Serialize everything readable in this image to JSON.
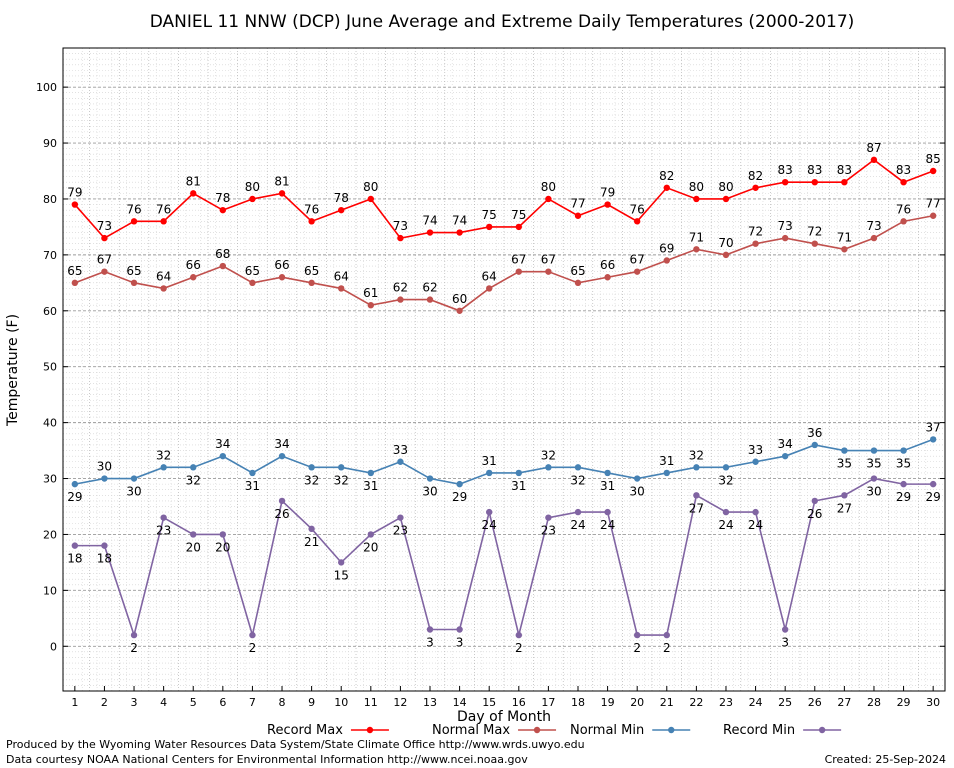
{
  "chart_data": {
    "type": "line",
    "title": "DANIEL 11 NNW (DCP) June Average and Extreme Daily Temperatures (2000-2017)",
    "xlabel": "Day of Month",
    "ylabel": "Temperature (F)",
    "ylim": [
      -8,
      107
    ],
    "xlim": [
      0.6,
      30.4
    ],
    "yticks": [
      0,
      10,
      20,
      30,
      40,
      50,
      60,
      70,
      80,
      90,
      100
    ],
    "grid": true,
    "legend_position": "bottom",
    "x": [
      1,
      2,
      3,
      4,
      5,
      6,
      7,
      8,
      9,
      10,
      11,
      12,
      13,
      14,
      15,
      16,
      17,
      18,
      19,
      20,
      21,
      22,
      23,
      24,
      25,
      26,
      27,
      28,
      29,
      30
    ],
    "series": [
      {
        "name": "Record Max",
        "color": "#ff0000",
        "label_pos": "above",
        "values": [
          79,
          73,
          76,
          76,
          81,
          78,
          80,
          81,
          76,
          78,
          80,
          73,
          74,
          74,
          75,
          75,
          80,
          77,
          79,
          76,
          82,
          80,
          80,
          82,
          83,
          83,
          83,
          87,
          83,
          85
        ]
      },
      {
        "name": "Normal Max",
        "color": "#c0504d",
        "label_pos": "above",
        "values": [
          65,
          67,
          65,
          64,
          66,
          68,
          65,
          66,
          65,
          64,
          61,
          62,
          62,
          60,
          64,
          67,
          67,
          65,
          66,
          67,
          69,
          71,
          70,
          72,
          73,
          72,
          71,
          73,
          76,
          77
        ]
      },
      {
        "name": "Normal Min",
        "color": "#4682b4",
        "label_pos": "mixed",
        "values": [
          29,
          30,
          30,
          32,
          32,
          34,
          31,
          34,
          32,
          32,
          31,
          33,
          30,
          29,
          31,
          31,
          32,
          32,
          31,
          30,
          31,
          32,
          32,
          33,
          34,
          36,
          35,
          35,
          35,
          37
        ]
      },
      {
        "name": "Record Min",
        "color": "#8064a2",
        "label_pos": "below",
        "values": [
          18,
          18,
          2,
          23,
          20,
          20,
          2,
          26,
          21,
          15,
          20,
          23,
          3,
          3,
          24,
          2,
          23,
          24,
          24,
          2,
          2,
          27,
          24,
          24,
          3,
          26,
          27,
          30,
          29,
          29
        ]
      }
    ]
  },
  "footer": {
    "produced_by": "Produced by the Wyoming Water Resources Data System/State Climate Office http://www.wrds.uwyo.edu",
    "data_courtesy": "Data courtesy NOAA National Centers for Environmental Information http://www.ncei.noaa.gov",
    "created": "Created:  25-Sep-2024"
  }
}
